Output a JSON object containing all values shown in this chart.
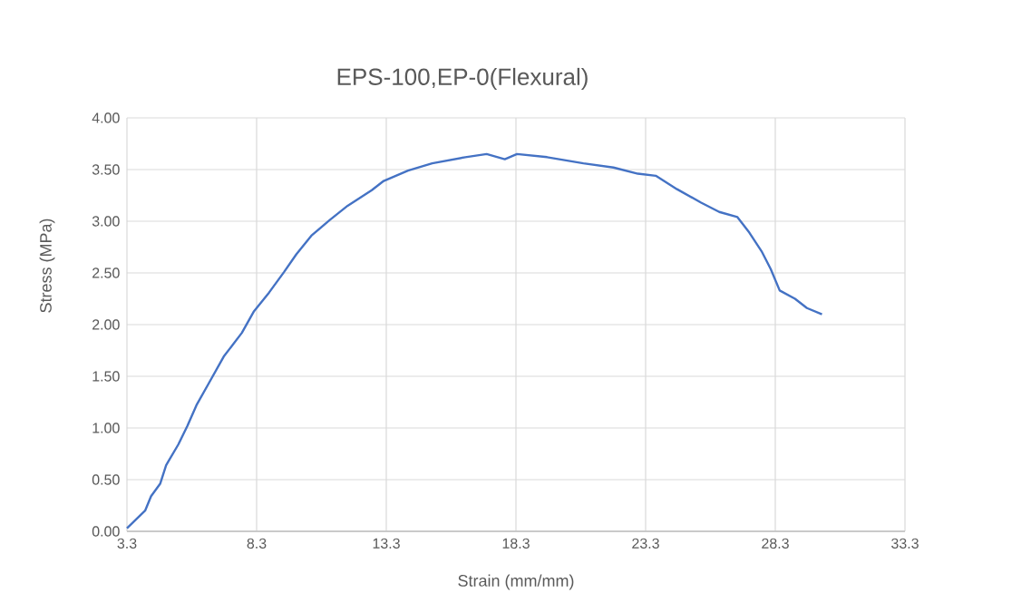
{
  "chart_data": {
    "type": "line",
    "title": "EPS-100,EP-0(Flexural)",
    "xlabel": "Strain (mm/mm)",
    "ylabel": "Stress (MPa)",
    "series": [
      {
        "color": "#4472c4",
        "x": [
          3.3,
          4.0,
          4.23,
          4.58,
          4.81,
          5.28,
          5.63,
          5.98,
          6.45,
          7.03,
          7.73,
          8.2,
          8.78,
          9.36,
          9.83,
          10.41,
          11.11,
          11.81,
          12.74,
          13.2,
          14.14,
          15.07,
          16.35,
          17.17,
          17.87,
          18.34,
          19.5,
          20.9,
          22.06,
          23.0,
          23.69,
          24.51,
          25.44,
          26.14,
          26.84,
          27.3,
          27.77,
          28.12,
          28.47,
          29.06,
          29.52,
          30.1
        ],
        "values": [
          0.03,
          0.2,
          0.34,
          0.46,
          0.64,
          0.84,
          1.02,
          1.22,
          1.43,
          1.69,
          1.92,
          2.13,
          2.31,
          2.51,
          2.68,
          2.86,
          3.01,
          3.15,
          3.3,
          3.39,
          3.49,
          3.56,
          3.62,
          3.65,
          3.6,
          3.65,
          3.62,
          3.56,
          3.52,
          3.46,
          3.44,
          3.31,
          3.18,
          3.09,
          3.04,
          2.89,
          2.71,
          2.54,
          2.33,
          2.25,
          2.16,
          2.1
        ]
      }
    ],
    "xlim": [
      3.3,
      33.3
    ],
    "xticks": [
      3.3,
      8.3,
      13.3,
      18.3,
      23.3,
      28.3,
      33.3
    ],
    "ylim": [
      0,
      4
    ],
    "yticks": [
      {
        "value": 0,
        "label": "0.00"
      },
      {
        "value": 0.5,
        "label": "0.50"
      },
      {
        "value": 1,
        "label": "1.00"
      },
      {
        "value": 1.5,
        "label": "1.50"
      },
      {
        "value": 2,
        "label": "2.00"
      },
      {
        "value": 2.5,
        "label": "2.50"
      },
      {
        "value": 3,
        "label": "3.00"
      },
      {
        "value": 3.5,
        "label": "3.50"
      },
      {
        "value": 4,
        "label": "4.00"
      }
    ],
    "grid": true,
    "marker": "none",
    "line_style": "solid"
  }
}
